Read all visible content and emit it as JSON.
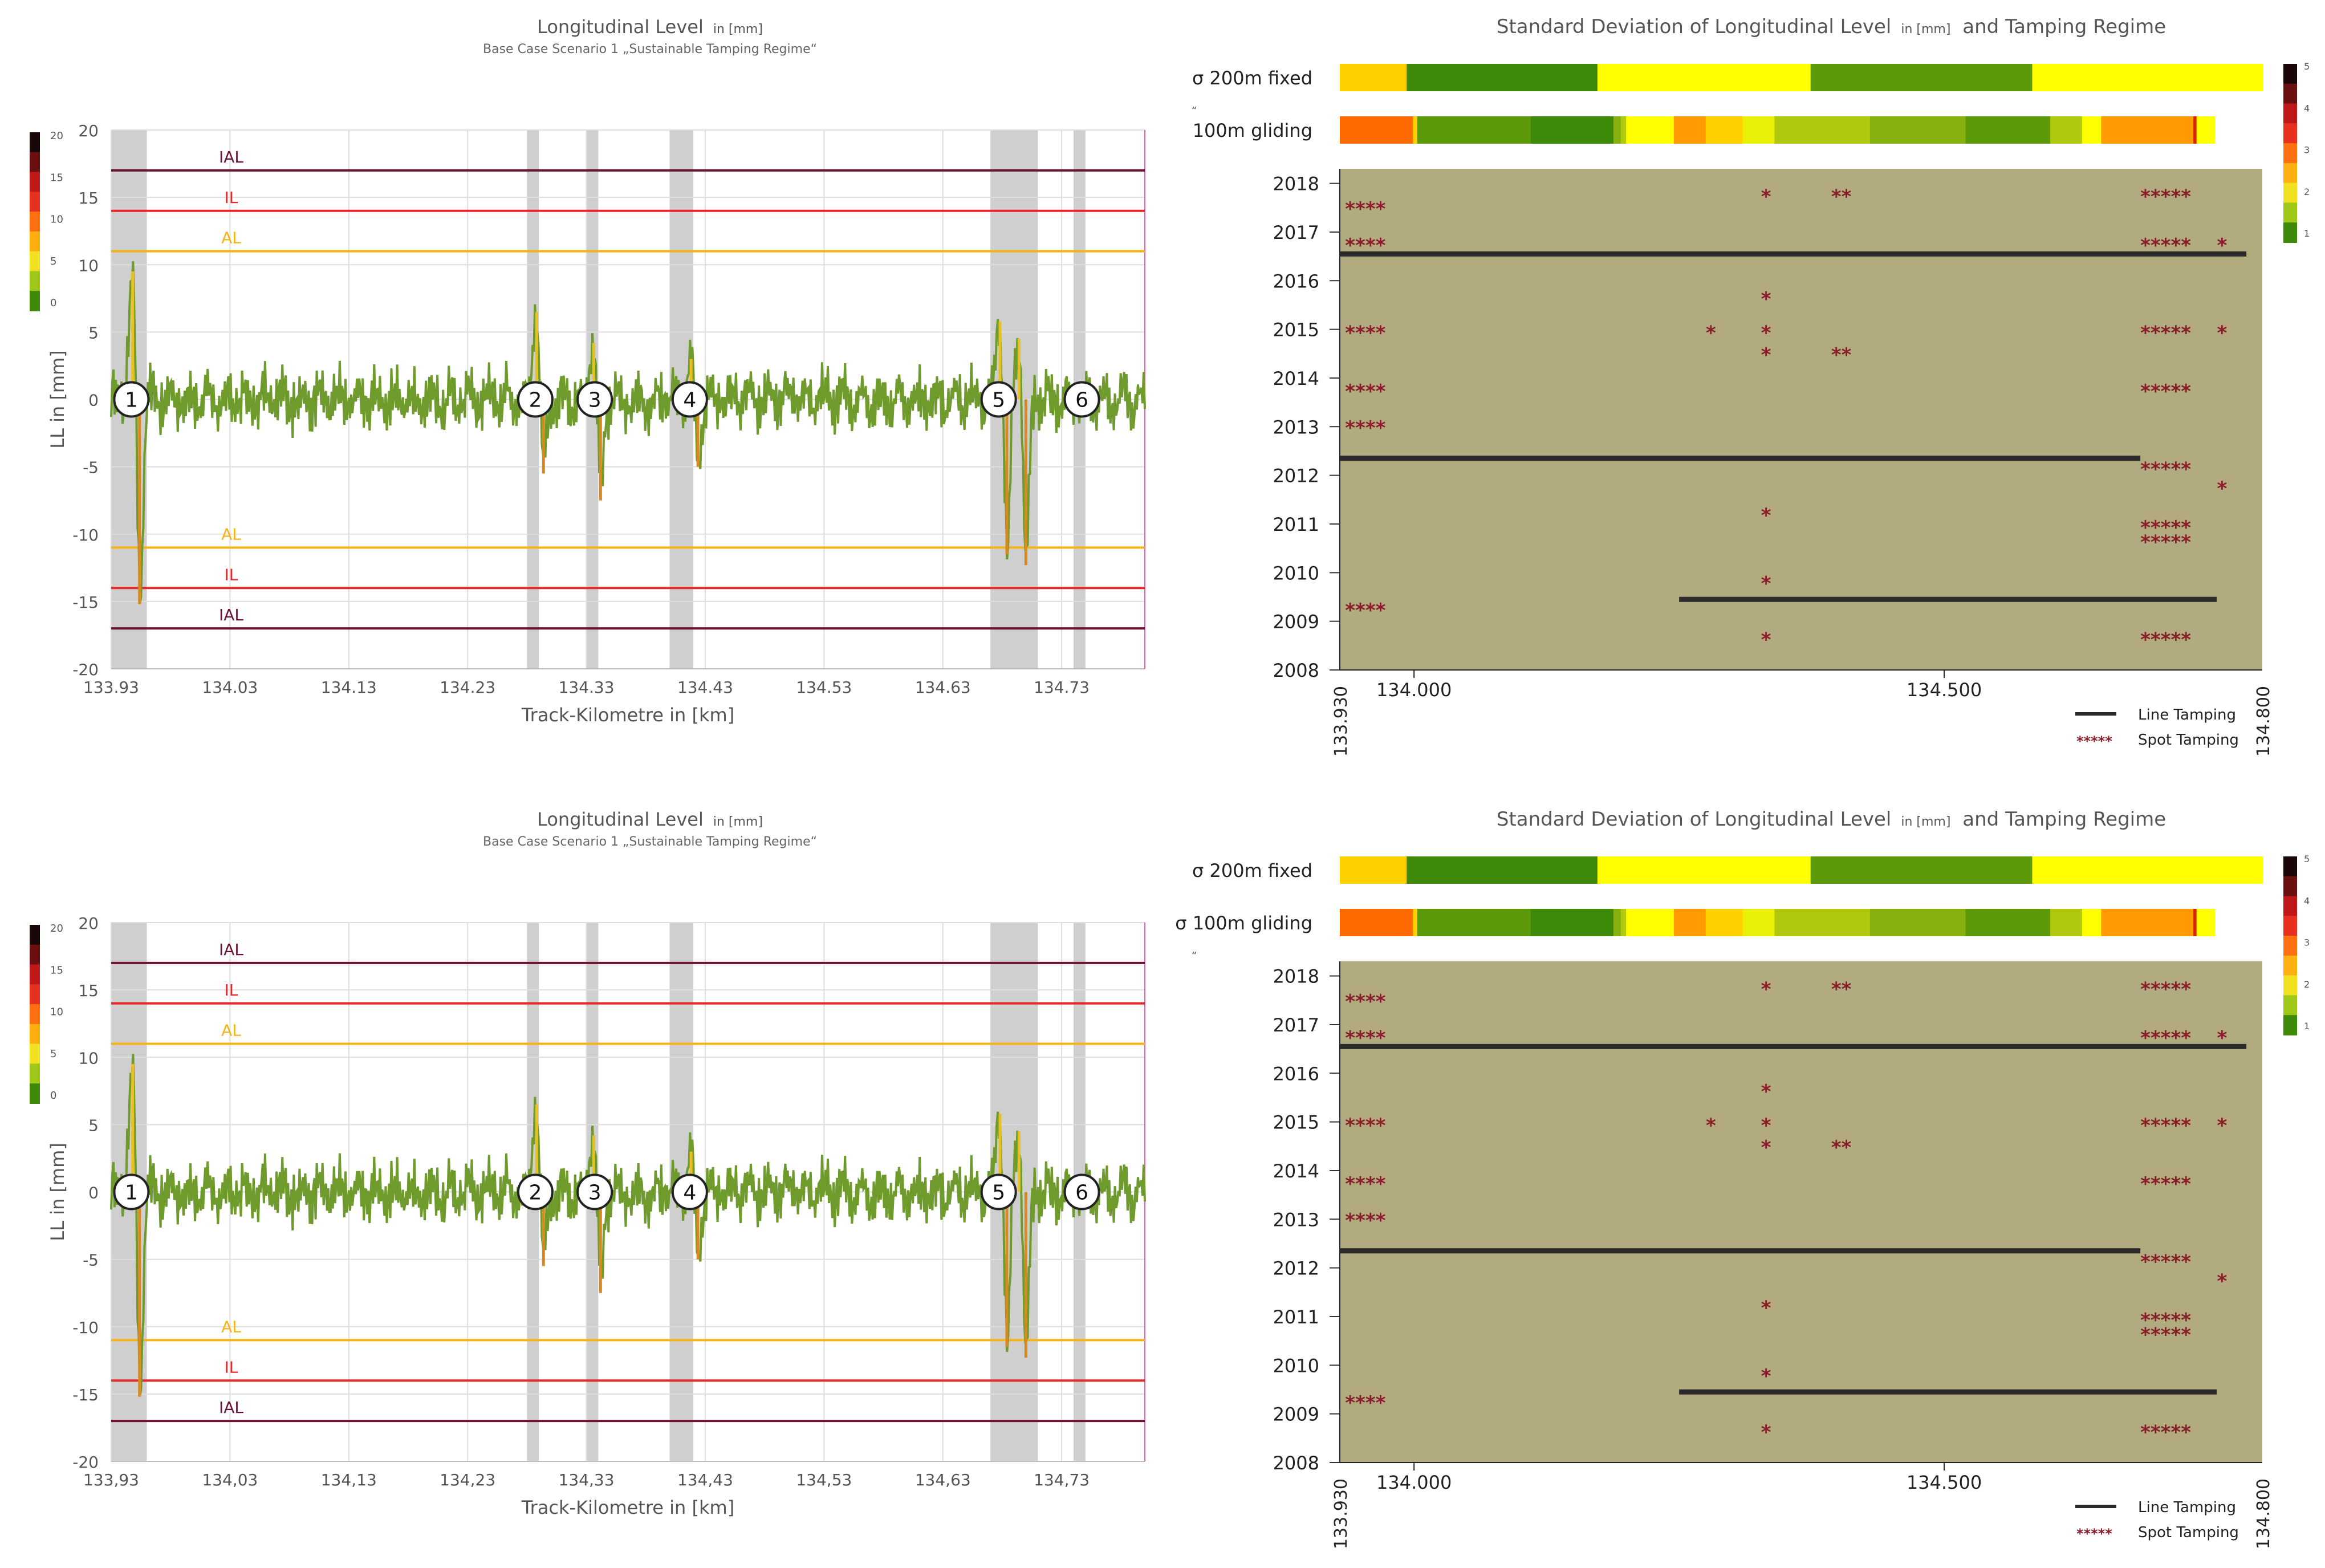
{
  "colors": {
    "band": "#cfcfcf",
    "ial": "#6b1236",
    "il": "#e8282b",
    "al": "#f5b318",
    "signal": "#6f9a2c",
    "grid": "#dedede",
    "tamping_bg": "#b2ab80",
    "line_tamping": "#2b2b2b",
    "spot_tamping": "#8a1d2a",
    "sd_palette": [
      "#3e8a08",
      "#5c9a0a",
      "#86b00e",
      "#b0c80e",
      "#e8f008",
      "#ffff00",
      "#ffd000",
      "#ff9a00",
      "#ff6a00",
      "#e02000"
    ]
  },
  "chart_data": [
    {
      "type": "line",
      "title": "Longitudinal Level",
      "title_unit": "in [mm]",
      "subtitle": "Base Case Scenario 1 „Sustainable Tamping Regime“",
      "xlabel": "Track-Kilometre in [km]",
      "ylabel": "LL in [mm]",
      "xlim": [
        133.93,
        134.8
      ],
      "ylim": [
        -20,
        20
      ],
      "x_ticks": [
        "133.93",
        "134.03",
        "134.13",
        "134.23",
        "134.33",
        "134.43",
        "134.53",
        "134.63",
        "134.73"
      ],
      "y_ticks": [
        "20",
        "15",
        "10",
        "5",
        "0",
        "-5",
        "-10",
        "-15",
        "-20"
      ],
      "thresholds": [
        {
          "label": "IAL",
          "value": 17,
          "color": "ial"
        },
        {
          "label": "IL",
          "value": 14,
          "color": "il"
        },
        {
          "label": "AL",
          "value": 11,
          "color": "al"
        },
        {
          "label": "AL",
          "value": -11,
          "color": "al"
        },
        {
          "label": "IL",
          "value": -14,
          "color": "il"
        },
        {
          "label": "IAL",
          "value": -17,
          "color": "ial"
        }
      ],
      "bands": [
        [
          133.93,
          133.96
        ],
        [
          134.28,
          134.29
        ],
        [
          134.33,
          134.34
        ],
        [
          134.4,
          134.42
        ],
        [
          134.67,
          134.71
        ],
        [
          134.74,
          134.75
        ]
      ],
      "markers": [
        {
          "label": "1",
          "x": 133.947
        },
        {
          "label": "2",
          "x": 134.287
        },
        {
          "label": "3",
          "x": 134.337
        },
        {
          "label": "4",
          "x": 134.417
        },
        {
          "label": "5",
          "x": 134.677
        },
        {
          "label": "6",
          "x": 134.747
        }
      ],
      "spikes": [
        {
          "x": 133.951,
          "peak": 9.5,
          "trough": -15.2
        },
        {
          "x": 134.291,
          "peak": 6.5,
          "trough": -5.5
        },
        {
          "x": 134.339,
          "peak": 4.2,
          "trough": -7.5
        },
        {
          "x": 134.421,
          "peak": 3.0,
          "trough": -5.0
        },
        {
          "x": 134.681,
          "peak": 5.8,
          "trough": -11.5
        },
        {
          "x": 134.697,
          "peak": 4.5,
          "trough": -12.3
        }
      ],
      "colorbar": {
        "ticks": [
          "20",
          "15",
          "10",
          "5",
          "0"
        ]
      }
    },
    {
      "type": "heatmap",
      "title": "Standard Deviation of Longitudinal Level",
      "title_unit": "in [mm]",
      "title_suffix": "and Tamping Regime",
      "row_labels": [
        "σ 200m fixed",
        "100m gliding"
      ],
      "row_fixed": [
        {
          "start": 133.93,
          "end": 133.993,
          "color_index": 6
        },
        {
          "start": 133.993,
          "end": 134.173,
          "color_index": 0
        },
        {
          "start": 134.173,
          "end": 134.374,
          "color_index": 5
        },
        {
          "start": 134.374,
          "end": 134.583,
          "color_index": 1
        },
        {
          "start": 134.583,
          "end": 134.8,
          "color_index": 5
        }
      ],
      "row_gliding": [
        {
          "start": 133.93,
          "end": 133.999,
          "color_index": 8
        },
        {
          "start": 133.999,
          "end": 134.003,
          "color_index": 6
        },
        {
          "start": 134.003,
          "end": 134.11,
          "color_index": 1
        },
        {
          "start": 134.11,
          "end": 134.188,
          "color_index": 0
        },
        {
          "start": 134.188,
          "end": 134.195,
          "color_index": 2
        },
        {
          "start": 134.195,
          "end": 134.2,
          "color_index": 3
        },
        {
          "start": 134.2,
          "end": 134.245,
          "color_index": 5
        },
        {
          "start": 134.245,
          "end": 134.275,
          "color_index": 7
        },
        {
          "start": 134.275,
          "end": 134.31,
          "color_index": 6
        },
        {
          "start": 134.31,
          "end": 134.34,
          "color_index": 4
        },
        {
          "start": 134.34,
          "end": 134.43,
          "color_index": 3
        },
        {
          "start": 134.43,
          "end": 134.52,
          "color_index": 2
        },
        {
          "start": 134.52,
          "end": 134.6,
          "color_index": 1
        },
        {
          "start": 134.6,
          "end": 134.63,
          "color_index": 3
        },
        {
          "start": 134.63,
          "end": 134.648,
          "color_index": 5
        },
        {
          "start": 134.648,
          "end": 134.735,
          "color_index": 7
        },
        {
          "start": 134.735,
          "end": 134.738,
          "color_index": 9
        },
        {
          "start": 134.738,
          "end": 134.755,
          "color_index": 5
        }
      ],
      "colorbar": {
        "ticks": [
          "5",
          "4",
          "3",
          "2",
          "1"
        ]
      }
    },
    {
      "type": "scatter",
      "title": "Tamping Regime",
      "xlim": [
        133.93,
        134.8
      ],
      "ylim": [
        2008,
        2018.3
      ],
      "x_ticks": [
        {
          "value": 134.0,
          "label": "134.000"
        },
        {
          "value": 134.5,
          "label": "134.500"
        }
      ],
      "x_edge_labels": [
        "133.930",
        "134.800"
      ],
      "y_ticks": [
        "2018",
        "2017",
        "2016",
        "2015",
        "2014",
        "2013",
        "2012",
        "2011",
        "2010",
        "2009",
        "2008"
      ],
      "line_tamping": [
        {
          "year": 2016.55,
          "start": 133.93,
          "end": 134.785
        },
        {
          "year": 2012.35,
          "start": 133.93,
          "end": 134.685
        },
        {
          "year": 2009.45,
          "start": 134.25,
          "end": 134.757
        }
      ],
      "spot_tamping": [
        {
          "year": 2017.55,
          "x": 133.935,
          "marks": "****"
        },
        {
          "year": 2016.8,
          "x": 133.935,
          "marks": "****"
        },
        {
          "year": 2015.0,
          "x": 133.935,
          "marks": "****"
        },
        {
          "year": 2013.8,
          "x": 133.935,
          "marks": "****"
        },
        {
          "year": 2013.05,
          "x": 133.935,
          "marks": "****"
        },
        {
          "year": 2009.3,
          "x": 133.935,
          "marks": "****"
        },
        {
          "year": 2017.8,
          "x": 134.332,
          "marks": "*"
        },
        {
          "year": 2015.7,
          "x": 134.332,
          "marks": "*"
        },
        {
          "year": 2015.0,
          "x": 134.332,
          "marks": "*"
        },
        {
          "year": 2014.55,
          "x": 134.332,
          "marks": "*"
        },
        {
          "year": 2011.25,
          "x": 134.332,
          "marks": "*"
        },
        {
          "year": 2009.85,
          "x": 134.332,
          "marks": "*"
        },
        {
          "year": 2008.7,
          "x": 134.332,
          "marks": "*"
        },
        {
          "year": 2015.0,
          "x": 134.28,
          "marks": "*"
        },
        {
          "year": 2017.8,
          "x": 134.403,
          "marks": "**"
        },
        {
          "year": 2014.55,
          "x": 134.403,
          "marks": "**"
        },
        {
          "year": 2017.8,
          "x": 134.685,
          "marks": "*****"
        },
        {
          "year": 2016.8,
          "x": 134.685,
          "marks": "*****"
        },
        {
          "year": 2015.0,
          "x": 134.685,
          "marks": "*****"
        },
        {
          "year": 2013.8,
          "x": 134.685,
          "marks": "*****"
        },
        {
          "year": 2012.2,
          "x": 134.685,
          "marks": "*****"
        },
        {
          "year": 2011.0,
          "x": 134.685,
          "marks": "*****"
        },
        {
          "year": 2010.7,
          "x": 134.685,
          "marks": "*****"
        },
        {
          "year": 2008.7,
          "x": 134.685,
          "marks": "*****"
        },
        {
          "year": 2016.8,
          "x": 134.762,
          "marks": "*"
        },
        {
          "year": 2015.0,
          "x": 134.762,
          "marks": "*"
        },
        {
          "year": 2011.8,
          "x": 134.762,
          "marks": "*"
        }
      ],
      "legend": {
        "line_label": "Line Tamping",
        "spot_label": "Spot Tamping",
        "spot_symbol": "*****",
        "position": "bottom-right"
      }
    }
  ],
  "panels": [
    {
      "ll_x_ticks": [
        "133.93",
        "134.03",
        "134.13",
        "134.23",
        "134.33",
        "134.43",
        "134.53",
        "134.63",
        "134.73"
      ],
      "sd_row_labels": [
        "σ 200m fixed",
        "100m gliding"
      ],
      "footnotes": [
        "“",
        ""
      ],
      "ll_title": "Longitudinal Level",
      "ll_unit": "in [mm]",
      "ll_subtitle": "Base Case Scenario 1 „Sustainable Tamping Regime“",
      "ll_xlabel": "Track-Kilometre in [km]",
      "ll_ylabel": "LL in [mm]",
      "sd_title": "Standard Deviation of Longitudinal Level",
      "sd_unit": "in [mm]",
      "sd_suffix": "and Tamping Regime"
    },
    {
      "ll_x_ticks": [
        "133,93",
        "134,03",
        "134,13",
        "134,23",
        "134,33",
        "134,43",
        "134,53",
        "134,63",
        "134,73"
      ],
      "sd_row_labels": [
        "σ 200m fixed",
        "σ 100m gliding"
      ],
      "footnotes": [
        "",
        "“"
      ],
      "ll_title": "Longitudinal Level",
      "ll_unit": "in [mm]",
      "ll_subtitle": "Base Case Scenario 1 „Sustainable Tamping Regime“",
      "ll_xlabel": "Track-Kilometre in [km]",
      "ll_ylabel": "LL in [mm]",
      "sd_title": "Standard Deviation of Longitudinal Level",
      "sd_unit": "in [mm]",
      "sd_suffix": "and Tamping Regime"
    }
  ]
}
